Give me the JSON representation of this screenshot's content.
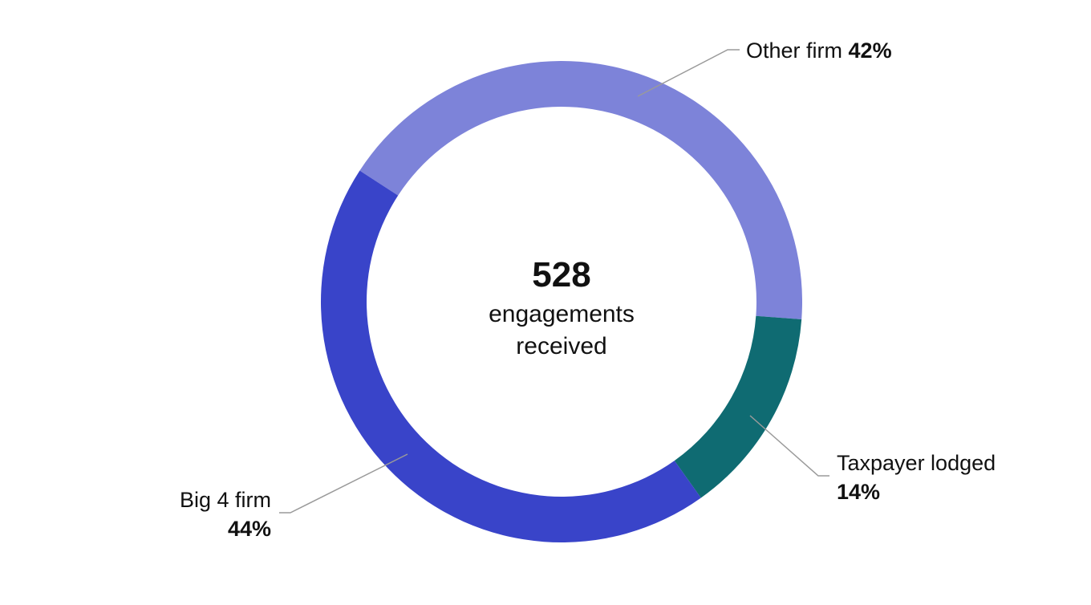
{
  "chart_data": {
    "type": "pie",
    "variant": "donut",
    "center_text": {
      "total": "528",
      "caption_lines": [
        "engagements",
        "received"
      ]
    },
    "slices": [
      {
        "label": "Other firm",
        "value": 42,
        "value_label": "42%",
        "color": "#7d83d9"
      },
      {
        "label": "Taxpayer lodged",
        "value": 14,
        "value_label": "14%",
        "color": "#0f6b72"
      },
      {
        "label": "Big 4 firm",
        "value": 44,
        "value_label": "44%",
        "color": "#3944c9"
      }
    ],
    "legend": "none"
  }
}
